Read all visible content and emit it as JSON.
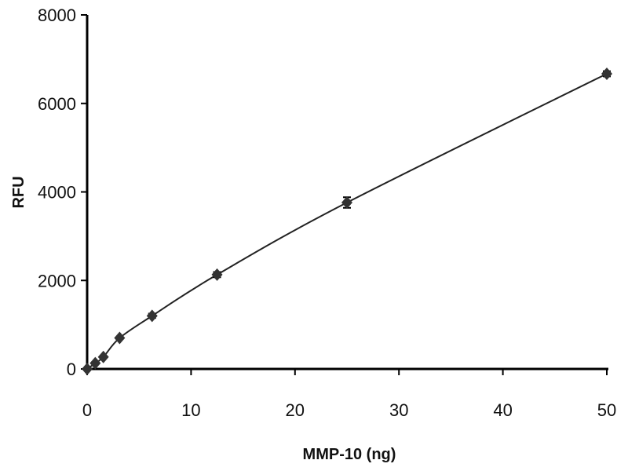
{
  "chart_data": {
    "type": "line",
    "title": "",
    "xlabel": "MMP-10 (ng)",
    "ylabel": "RFU",
    "xlim": [
      0,
      50
    ],
    "ylim": [
      0,
      8000
    ],
    "xticks": [
      "0",
      "10",
      "20",
      "30",
      "40",
      "50"
    ],
    "yticks": [
      "0",
      "2000",
      "4000",
      "6000",
      "8000"
    ],
    "grid": false,
    "marker": "diamond",
    "color": "#333333",
    "x": [
      0,
      0.78,
      1.56,
      3.125,
      6.25,
      12.5,
      25,
      50
    ],
    "y": [
      0,
      130,
      270,
      700,
      1200,
      2130,
      3760,
      6670
    ],
    "error": [
      0,
      20,
      30,
      40,
      50,
      60,
      120,
      60
    ]
  }
}
